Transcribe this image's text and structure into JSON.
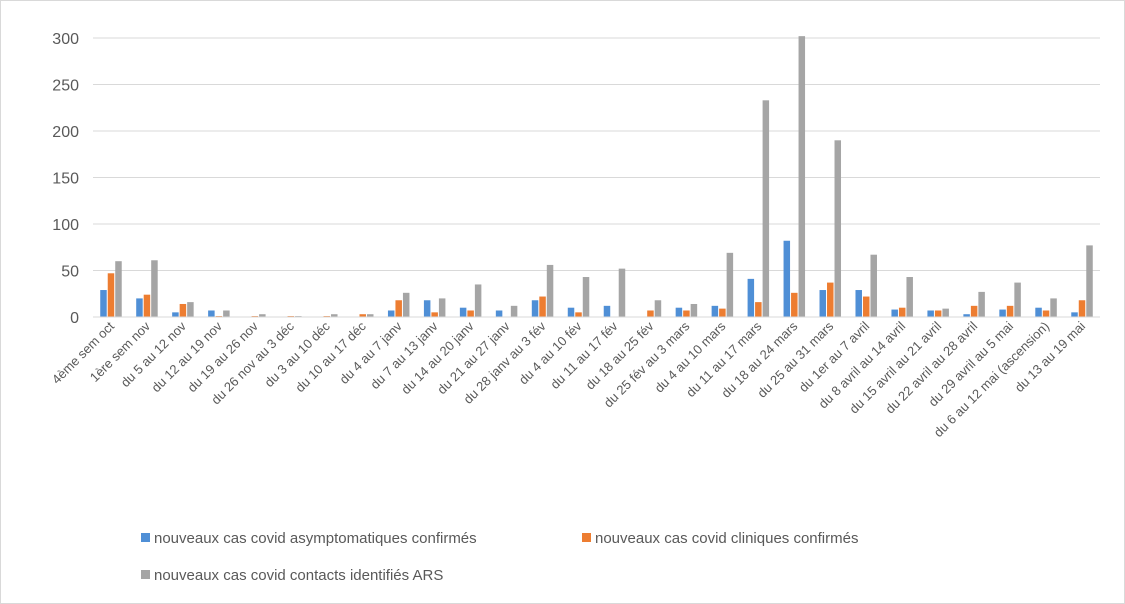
{
  "chart_data": {
    "type": "bar",
    "title": "",
    "xlabel": "",
    "ylabel": "",
    "ylim": [
      0,
      300
    ],
    "yticks": [
      0,
      50,
      100,
      150,
      200,
      250,
      300
    ],
    "grid": true,
    "legend_position": "bottom",
    "categories": [
      "4ème sem oct",
      "1ère sem nov",
      "du 5 au 12 nov",
      "du 12 au 19 nov",
      "du 19 au 26 nov",
      "du 26 nov au 3 déc",
      "du 3 au 10 déc",
      "du 10 au 17 déc",
      "du 4 au 7 janv",
      "du 7 au 13 janv",
      "du 14 au 20 janv",
      "du 21 au 27 janv",
      "du 28 janv au 3 fév",
      "du 4 au 10 fév",
      "du 11 au 17 fév",
      "du 18 au 25 fév",
      "du 25 fév au 3 mars",
      "du 4 au 10 mars",
      "du 11 au 17 mars",
      "du 18 au 24 mars",
      "du 25 au 31 mars",
      "du 1er au 7 avril",
      "du 8 avril au 14 avril",
      "du 15 avril au 21 avril",
      "du 22 avril au 28 avril",
      "du 29 avril au 5 mai",
      "du 6 au 12 mai (ascension)",
      "du 13 au 19 mai"
    ],
    "series": [
      {
        "name": "nouveaux cas covid asymptomatiques confirmés",
        "color": "#4f8fd6",
        "values": [
          29,
          20,
          5,
          7,
          0,
          0,
          0,
          0,
          7,
          18,
          10,
          7,
          18,
          10,
          12,
          0,
          10,
          12,
          41,
          82,
          29,
          29,
          8,
          7,
          3,
          8,
          10,
          5
        ]
      },
      {
        "name": "nouveaux cas covid cliniques confirmés",
        "color": "#ed7d31",
        "values": [
          47,
          24,
          14,
          1,
          1,
          1,
          1,
          3,
          18,
          5,
          7,
          0,
          22,
          5,
          0,
          7,
          7,
          9,
          16,
          26,
          37,
          22,
          10,
          7,
          12,
          12,
          7,
          18
        ]
      },
      {
        "name": "nouveaux cas covid contacts identifiés ARS",
        "color": "#a5a5a5",
        "values": [
          60,
          61,
          16,
          7,
          3,
          1,
          3,
          3,
          26,
          20,
          35,
          12,
          56,
          43,
          52,
          18,
          14,
          69,
          233,
          302,
          190,
          67,
          43,
          9,
          27,
          37,
          20,
          77
        ]
      }
    ]
  }
}
